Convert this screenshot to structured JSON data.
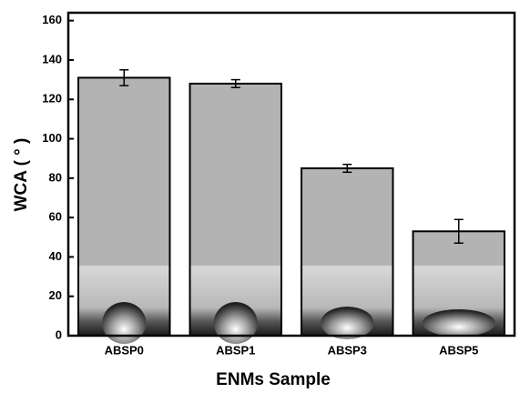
{
  "chart_data": {
    "type": "bar",
    "x_label": "ENMs Sample",
    "y_label": "WCA ( ° )",
    "categories": [
      "ABSP0",
      "ABSP1",
      "ABSP3",
      "ABSP5"
    ],
    "values": [
      131,
      128,
      85,
      53
    ],
    "errors": [
      4,
      2,
      2,
      6
    ],
    "color": "#b3b3b3",
    "ylim": [
      0,
      164
    ],
    "yticks": [
      0,
      20,
      40,
      60,
      80,
      100,
      120,
      140,
      160
    ]
  }
}
